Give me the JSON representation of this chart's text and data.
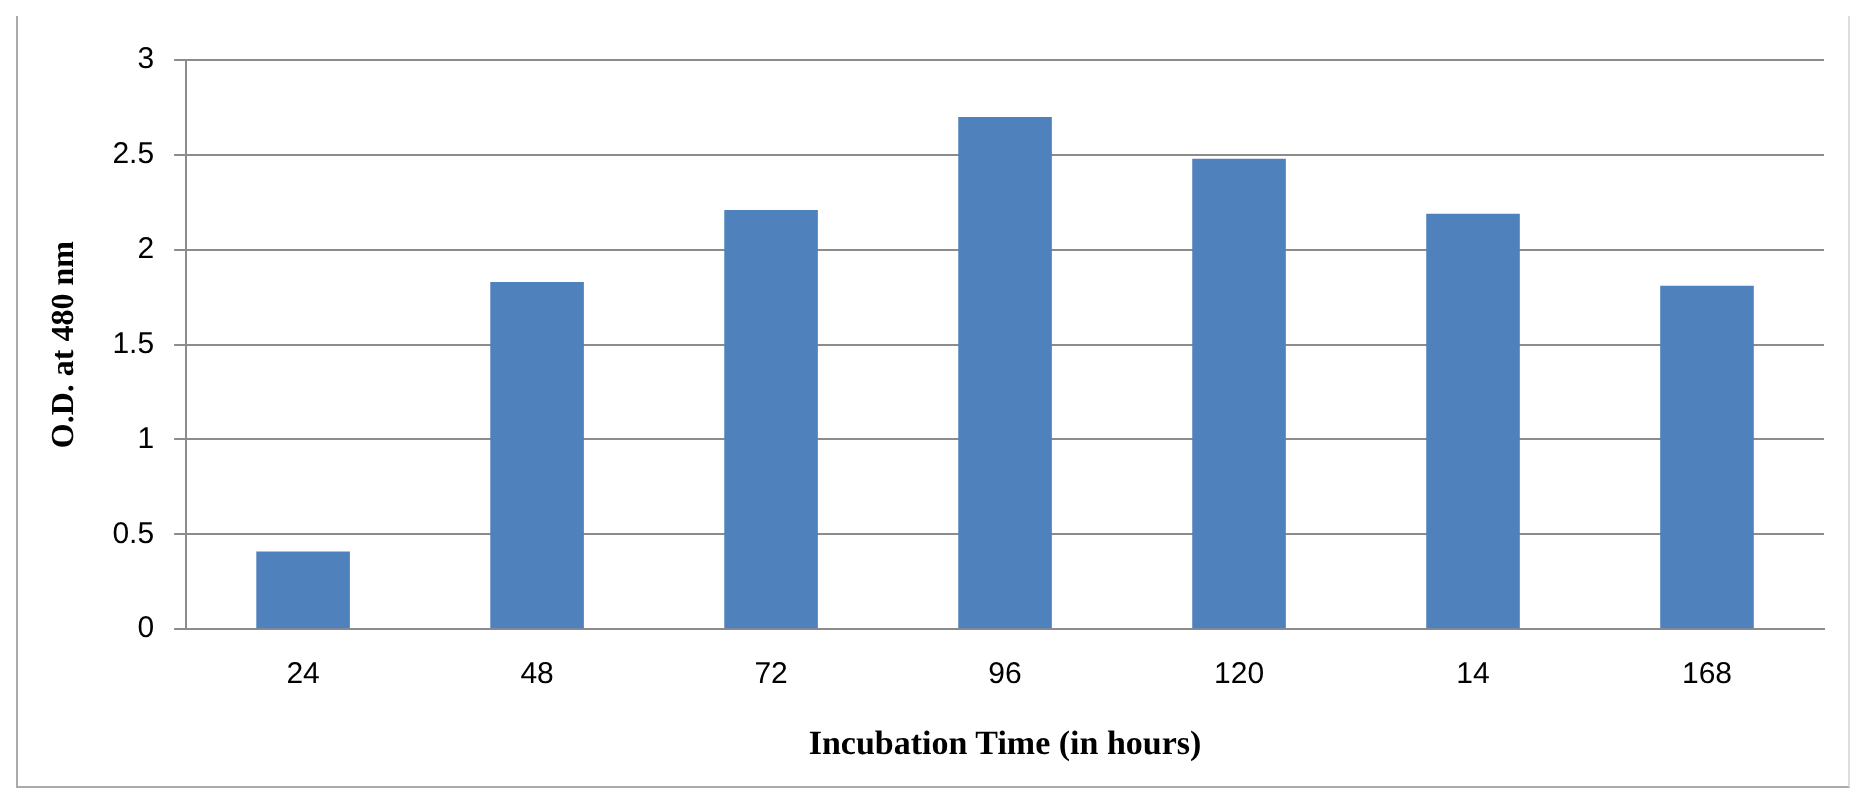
{
  "chart_data": {
    "type": "bar",
    "xlabel": "Incubation Time (in hours)",
    "ylabel": "O.D. at 480 nm",
    "categories": [
      "24",
      "48",
      "72",
      "96",
      "120",
      "14",
      "168"
    ],
    "values": [
      0.41,
      1.83,
      2.21,
      2.7,
      2.48,
      2.19,
      1.81
    ],
    "color": "#4f81bd",
    "ylim": [
      0,
      3
    ],
    "yticks": [
      0,
      0.5,
      1,
      1.5,
      2,
      2.5,
      3
    ],
    "grid": "y",
    "legend": false
  }
}
